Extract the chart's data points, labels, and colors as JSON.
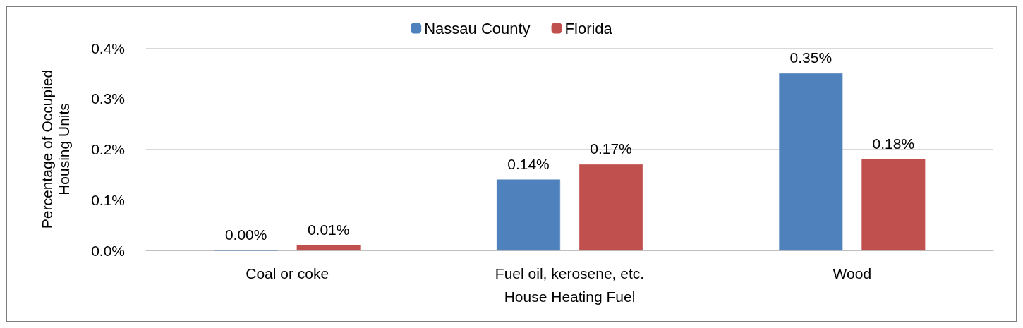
{
  "chart_data": {
    "type": "bar",
    "xlabel": "House Heating Fuel",
    "ylabel": "Percentage of Occupied\nHousing Units",
    "categories": [
      "Coal or coke",
      "Fuel oil, kerosene, etc.",
      "Wood"
    ],
    "series": [
      {
        "name": "Nassau County",
        "color": "#4f81bd",
        "values": [
          0,
          0.14,
          0.35
        ],
        "value_labels": [
          "0.00%",
          "0.14%",
          "0.35%"
        ]
      },
      {
        "name": "Florida",
        "color": "#c0504d",
        "values": [
          0.01,
          0.17,
          0.18
        ],
        "value_labels": [
          "0.01%",
          "0.17%",
          "0.18%"
        ]
      }
    ],
    "ylim": [
      0,
      0.4
    ],
    "yticks": [
      {
        "value": 0,
        "label": "0.0%"
      },
      {
        "value": 0.1,
        "label": "0.1%"
      },
      {
        "value": 0.2,
        "label": "0.2%"
      },
      {
        "value": 0.3,
        "label": "0.3%"
      },
      {
        "value": 0.4,
        "label": "0.4%"
      }
    ],
    "grid": "y",
    "legend": "top"
  }
}
